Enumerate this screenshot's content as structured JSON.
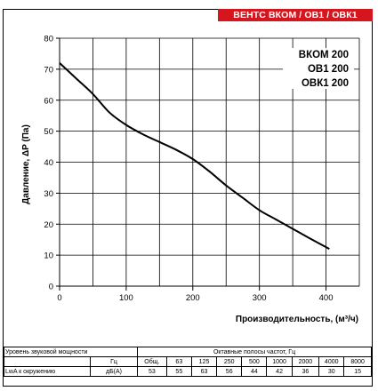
{
  "header": {
    "badge": "ВЕНТС ВКОМ / ОВ1 / ОВК1"
  },
  "legend": {
    "models": [
      "ВКОМ 200",
      "ОВ1 200",
      "ОВК1 200"
    ]
  },
  "chart_data": {
    "type": "line",
    "ylabel": "Давление, ΔP (Па)",
    "xlabel": "Производительность, (м³/ч)",
    "xlim": [
      0,
      450
    ],
    "ylim": [
      0,
      80
    ],
    "xticks": [
      0,
      100,
      200,
      300,
      400
    ],
    "yticks": [
      0,
      10,
      20,
      30,
      40,
      50,
      60,
      70,
      80
    ],
    "grid": true,
    "series": [
      {
        "name": "ВКОМ 200 / ОВ1 200 / ОВК1 200",
        "x": [
          0,
          25,
          50,
          75,
          100,
          125,
          150,
          175,
          200,
          225,
          250,
          275,
          300,
          325,
          350,
          375,
          405
        ],
        "y": [
          72,
          67,
          62,
          56,
          52,
          49,
          46.5,
          44,
          41,
          37,
          32.5,
          28.5,
          24.5,
          21.5,
          18.5,
          15.5,
          12
        ]
      }
    ]
  },
  "sound_table": {
    "title": "Уровень звуковой мощности",
    "bands_title": "Октавные полосы частот, Гц",
    "unit_hz": "Гц",
    "unit_db": "дБ(А)",
    "row_label": "LwA к окружению",
    "headers": [
      "Общ.",
      "63",
      "125",
      "250",
      "500",
      "1000",
      "2000",
      "4000",
      "8000"
    ],
    "values": [
      "53",
      "55",
      "63",
      "56",
      "44",
      "42",
      "36",
      "30",
      "15"
    ]
  }
}
